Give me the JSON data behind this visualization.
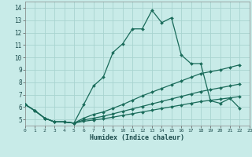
{
  "xlabel": "Humidex (Indice chaleur)",
  "bg_color": "#c8ebe8",
  "grid_color": "#a8d4d0",
  "line_color": "#1a6b5a",
  "xlim": [
    0,
    23
  ],
  "ylim": [
    4.5,
    14.5
  ],
  "xtick_pos": [
    0,
    1,
    2,
    3,
    4,
    5,
    6,
    7,
    8,
    9,
    10,
    11,
    12,
    13,
    14,
    15,
    16,
    17,
    18,
    19,
    20,
    21,
    22,
    23
  ],
  "xtick_labels": [
    "0",
    "1",
    "2",
    "3",
    "4",
    "5",
    "6",
    "7",
    "8",
    "9",
    "10",
    "11",
    "12",
    "13",
    "14",
    "15",
    "16",
    "17",
    "18",
    "19",
    "20",
    "21",
    "22",
    "23"
  ],
  "ytick_pos": [
    5,
    6,
    7,
    8,
    9,
    10,
    11,
    12,
    13,
    14
  ],
  "ytick_labels": [
    "5",
    "6",
    "7",
    "8",
    "9",
    "10",
    "11",
    "12",
    "13",
    "14"
  ],
  "lines": [
    {
      "x": [
        0,
        1,
        2,
        3,
        4,
        5,
        6,
        7,
        8,
        9,
        10,
        11,
        12,
        13,
        14,
        15,
        16,
        17,
        18,
        19,
        20,
        21,
        22
      ],
      "y": [
        6.2,
        5.7,
        5.1,
        4.8,
        4.8,
        4.7,
        6.2,
        7.7,
        8.4,
        10.4,
        11.1,
        12.3,
        12.3,
        13.8,
        12.8,
        13.2,
        10.2,
        9.5,
        9.5,
        6.5,
        6.3,
        6.7,
        5.9
      ]
    },
    {
      "x": [
        0,
        1,
        2,
        3,
        4,
        5,
        6,
        7,
        8,
        9,
        10,
        11,
        12,
        13,
        14,
        15,
        16,
        17,
        18,
        19,
        20,
        21,
        22
      ],
      "y": [
        6.2,
        5.7,
        5.1,
        4.8,
        4.8,
        4.7,
        5.1,
        5.4,
        5.6,
        5.9,
        6.2,
        6.55,
        6.9,
        7.2,
        7.5,
        7.8,
        8.1,
        8.4,
        8.7,
        8.85,
        9.0,
        9.2,
        9.4
      ]
    },
    {
      "x": [
        0,
        1,
        2,
        3,
        4,
        5,
        6,
        7,
        8,
        9,
        10,
        11,
        12,
        13,
        14,
        15,
        16,
        17,
        18,
        19,
        20,
        21,
        22
      ],
      "y": [
        6.2,
        5.7,
        5.1,
        4.8,
        4.8,
        4.7,
        4.95,
        5.1,
        5.25,
        5.45,
        5.65,
        5.85,
        6.05,
        6.25,
        6.45,
        6.65,
        6.85,
        7.05,
        7.25,
        7.4,
        7.55,
        7.7,
        7.85
      ]
    },
    {
      "x": [
        0,
        1,
        2,
        3,
        4,
        5,
        6,
        7,
        8,
        9,
        10,
        11,
        12,
        13,
        14,
        15,
        16,
        17,
        18,
        19,
        20,
        21,
        22
      ],
      "y": [
        6.2,
        5.7,
        5.1,
        4.8,
        4.8,
        4.7,
        4.85,
        4.95,
        5.05,
        5.18,
        5.32,
        5.46,
        5.6,
        5.74,
        5.88,
        6.02,
        6.16,
        6.3,
        6.44,
        6.54,
        6.64,
        6.74,
        6.84
      ]
    }
  ]
}
